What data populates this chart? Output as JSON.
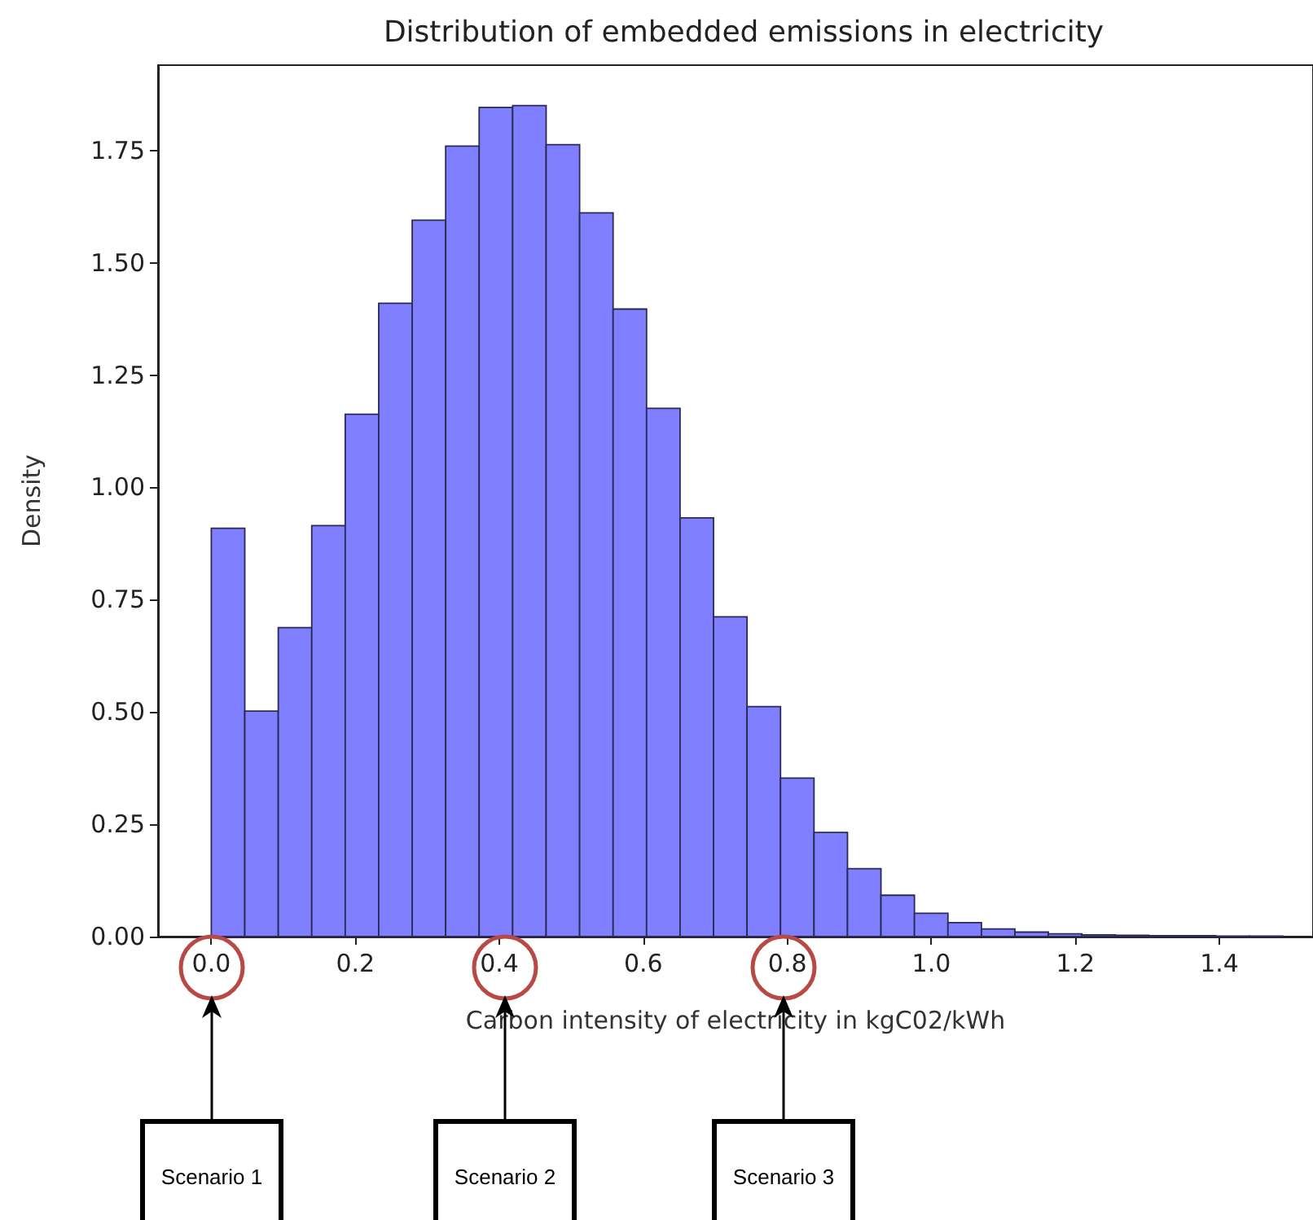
{
  "chart_data": {
    "type": "histogram",
    "title": "Distribution of embedded emissions in electricity",
    "xlabel": "Carbon intensity of electricity in kgC02/kWh",
    "ylabel": "Density",
    "color": "#7f7fff",
    "bins": [
      0,
      0.0465,
      0.093,
      0.1395,
      0.186,
      0.2325,
      0.279,
      0.3255,
      0.372,
      0.4185,
      0.465,
      0.5115,
      0.558,
      0.6045,
      0.651,
      0.6975,
      0.744,
      0.7905,
      0.837,
      0.8835,
      0.93,
      0.9765,
      1.023,
      1.0695,
      1.116,
      1.1625,
      1.209,
      1.2555,
      1.302,
      1.3485,
      1.395,
      1.4415,
      1.488
    ],
    "values": [
      0.909,
      0.502,
      0.688,
      0.915,
      1.163,
      1.41,
      1.595,
      1.76,
      1.846,
      1.85,
      1.763,
      1.611,
      1.397,
      1.176,
      0.932,
      0.712,
      0.512,
      0.353,
      0.232,
      0.151,
      0.092,
      0.052,
      0.031,
      0.017,
      0.01,
      0.006,
      0.004,
      0.003,
      0.002,
      0.002,
      0.001,
      0.001
    ],
    "xlim": [
      -0.074,
      1.53
    ],
    "ylim": [
      0,
      1.94
    ],
    "xticks": [
      {
        "value": 0,
        "label": "0.0"
      },
      {
        "value": 0.2,
        "label": "0.2"
      },
      {
        "value": 0.4,
        "label": "0.4"
      },
      {
        "value": 0.6,
        "label": "0.6"
      },
      {
        "value": 0.8,
        "label": "0.8"
      },
      {
        "value": 1,
        "label": "1.0"
      },
      {
        "value": 1.2,
        "label": "1.2"
      },
      {
        "value": 1.4,
        "label": "1.4"
      }
    ],
    "yticks": [
      {
        "value": 0,
        "label": "0.00"
      },
      {
        "value": 0.25,
        "label": "0.25"
      },
      {
        "value": 0.5,
        "label": "0.50"
      },
      {
        "value": 0.75,
        "label": "0.75"
      },
      {
        "value": 1,
        "label": "1.00"
      },
      {
        "value": 1.25,
        "label": "1.25"
      },
      {
        "value": 1.5,
        "label": "1.50"
      },
      {
        "value": 1.75,
        "label": "1.75"
      }
    ],
    "grid": false,
    "annotations": [
      "Scenario 1",
      "Scenario 2",
      "Scenario 3"
    ]
  }
}
